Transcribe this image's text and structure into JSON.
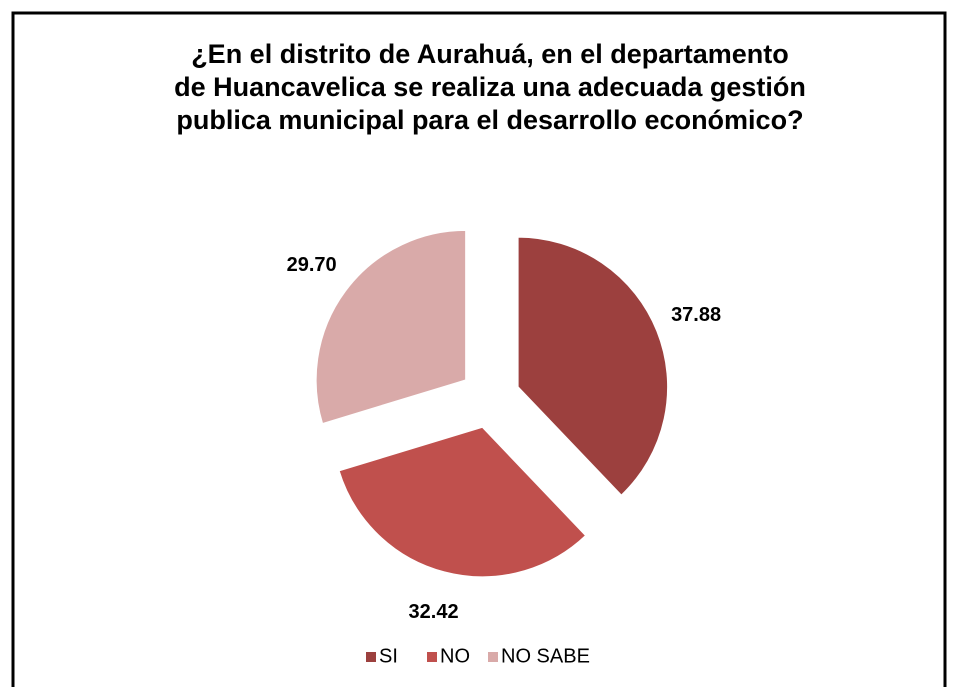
{
  "chart_data": {
    "type": "pie",
    "title": [
      "¿En el distrito de Aurahuá, en el departamento",
      "de Huancavelica se realiza una adecuada gestión",
      "publica municipal para el desarrollo económico?"
    ],
    "categories": [
      "SI",
      "NO",
      "NO SABE"
    ],
    "values": [
      37.88,
      32.42,
      29.7
    ],
    "value_labels": [
      "37.88",
      "32.42",
      "29.70"
    ],
    "colors": [
      "#9c403e",
      "#c0504d",
      "#d9aaa9"
    ],
    "legend": "bottom"
  }
}
